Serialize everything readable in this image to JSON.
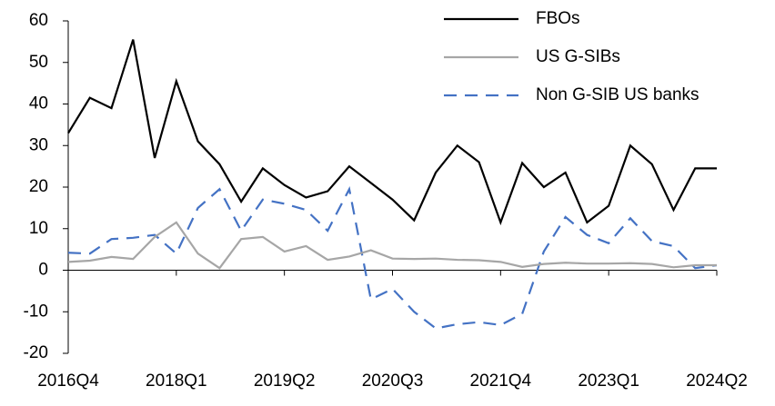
{
  "chart_data": {
    "type": "line",
    "categories": [
      "2016Q4",
      null,
      null,
      null,
      null,
      "2018Q1",
      null,
      null,
      null,
      null,
      "2019Q2",
      null,
      null,
      null,
      null,
      "2020Q3",
      null,
      null,
      null,
      null,
      "2021Q4",
      null,
      null,
      null,
      null,
      "2023Q1",
      null,
      null,
      null,
      null,
      "2024Q2"
    ],
    "series": [
      {
        "name": "FBOs",
        "color": "#000000",
        "line_style": "solid",
        "values": [
          33,
          41.5,
          39,
          55.5,
          27,
          45.5,
          31,
          25.5,
          16.5,
          24.5,
          20.5,
          17.5,
          19,
          25,
          21,
          17,
          12,
          23.5,
          30,
          26,
          11.5,
          25.8,
          20,
          23.5,
          11.5,
          15.5,
          30,
          25.5,
          14.5,
          24.5,
          24.5
        ]
      },
      {
        "name": "US G-SIBs",
        "color": "#a6a6a6",
        "line_style": "solid",
        "values": [
          2,
          2.3,
          3.2,
          2.7,
          8,
          11.5,
          4,
          0.5,
          7.5,
          8,
          4.5,
          5.8,
          2.5,
          3.3,
          4.8,
          2.8,
          2.7,
          2.8,
          2.5,
          2.4,
          2,
          0.8,
          1.5,
          1.8,
          1.6,
          1.6,
          1.7,
          1.5,
          0.7,
          1.2,
          1.2
        ]
      },
      {
        "name": "Non G-SIB US banks",
        "color": "#4472c4",
        "line_style": "dashed",
        "values": [
          4.2,
          4,
          7.5,
          7.8,
          8.5,
          4,
          15,
          19.5,
          9.5,
          17,
          16,
          14.5,
          9.5,
          19.5,
          -7,
          -4.5,
          -10,
          -14,
          -13,
          -12.5,
          -13.2,
          -10.5,
          4.5,
          12.8,
          8.5,
          6.5,
          12.5,
          7,
          5.8,
          0.5,
          1.2
        ]
      }
    ],
    "ylim": [
      -20,
      60
    ],
    "yticks": [
      -20,
      -10,
      0,
      10,
      20,
      30,
      40,
      50,
      60
    ],
    "grid": false,
    "legend": "top-right"
  }
}
